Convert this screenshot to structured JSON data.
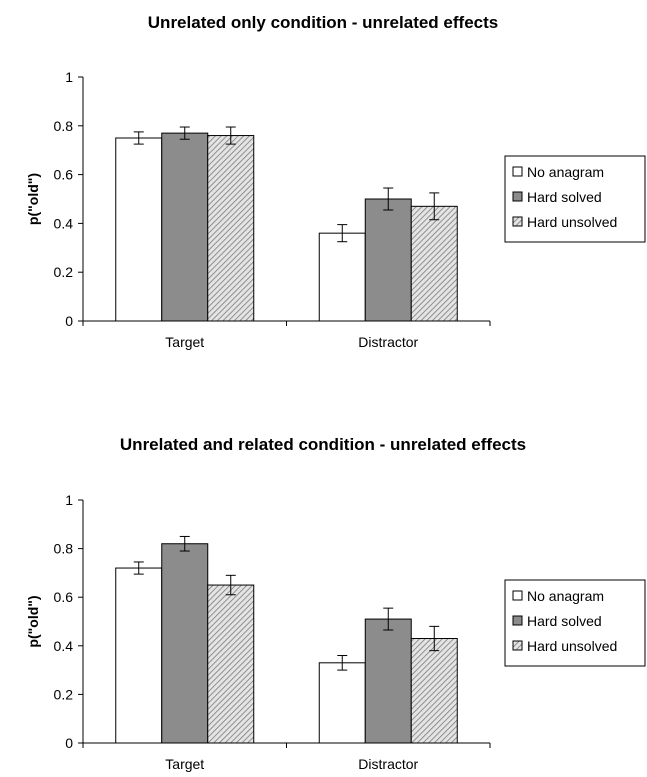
{
  "chart_data": [
    {
      "type": "bar",
      "title": "Unrelated only condition - unrelated effects",
      "xlabel": "",
      "ylabel": "p(\"old\")",
      "ylim": [
        0,
        1
      ],
      "yticks": [
        "0",
        "0.2",
        "0.4",
        "0.6",
        "0.8",
        "1"
      ],
      "categories": [
        "Target",
        "Distractor"
      ],
      "series": [
        {
          "name": "No anagram",
          "values": [
            0.75,
            0.36
          ],
          "errors": [
            0.025,
            0.035
          ],
          "fill": "#ffffff",
          "pattern": "none"
        },
        {
          "name": "Hard solved",
          "values": [
            0.77,
            0.5
          ],
          "errors": [
            0.025,
            0.045
          ],
          "fill": "#8c8c8c",
          "pattern": "none"
        },
        {
          "name": "Hard unsolved",
          "values": [
            0.76,
            0.47
          ],
          "errors": [
            0.035,
            0.055
          ],
          "fill": "#d0d0d0",
          "pattern": "hatch"
        }
      ],
      "legend": "right",
      "grid": false
    },
    {
      "type": "bar",
      "title": "Unrelated and related condition - unrelated effects",
      "xlabel": "",
      "ylabel": "p(\"old\")",
      "ylim": [
        0,
        1
      ],
      "yticks": [
        "0",
        "0.2",
        "0.4",
        "0.6",
        "0.8",
        "1"
      ],
      "categories": [
        "Target",
        "Distractor"
      ],
      "series": [
        {
          "name": "No anagram",
          "values": [
            0.72,
            0.33
          ],
          "errors": [
            0.025,
            0.03
          ],
          "fill": "#ffffff",
          "pattern": "none"
        },
        {
          "name": "Hard solved",
          "values": [
            0.82,
            0.51
          ],
          "errors": [
            0.03,
            0.045
          ],
          "fill": "#8c8c8c",
          "pattern": "none"
        },
        {
          "name": "Hard unsolved",
          "values": [
            0.65,
            0.43
          ],
          "errors": [
            0.04,
            0.05
          ],
          "fill": "#d0d0d0",
          "pattern": "hatch"
        }
      ],
      "legend": "right",
      "grid": false
    }
  ]
}
